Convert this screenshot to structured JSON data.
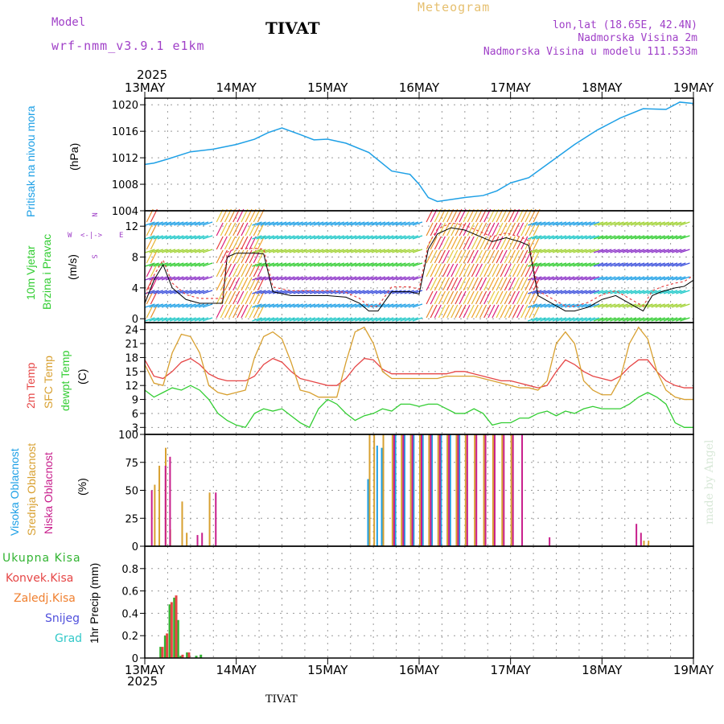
{
  "header": {
    "model_label": "Model",
    "model_name": "wrf-nmm_v3.9.1 e1km",
    "title": "TIVAT",
    "meteogram": "Meteogram",
    "lonlat": "lon,lat (18.65E, 42.4N)",
    "elevation": "Nadmorska Visina 2m",
    "model_elevation": "Nadmorska Visina u modelu 111.533m",
    "year_top": "2025",
    "year_bottom": "2025",
    "footer": "TIVAT",
    "credit": "made by Angel"
  },
  "colors": {
    "pressure": "#1ea0e6",
    "temp2m": "#e64646",
    "sfc_temp": "#d8a030",
    "dewpt": "#32cd32",
    "high_cloud": "#1ea0e6",
    "mid_cloud": "#d8a030",
    "low_cloud": "#c81e8c",
    "total_rain": "#32b432",
    "conv_rain": "#e64646",
    "frz_rain": "#f08030",
    "snow": "#5050dc",
    "hail": "#32c8c8"
  },
  "chart_data": [
    {
      "type": "line",
      "panel": "pressure",
      "ylabel_main": "Pritisak na nivou mora",
      "unit": "(hPa)",
      "x_ticks": [
        "13MAY",
        "14MAY",
        "15MAY",
        "16MAY",
        "17MAY",
        "18MAY",
        "19MAY"
      ],
      "ylim": [
        1004,
        1021
      ],
      "y_ticks": [
        1004,
        1008,
        1012,
        1016,
        1020
      ],
      "grid": true,
      "x_days": [
        0.0,
        0.1,
        0.25,
        0.5,
        0.75,
        1.0,
        1.2,
        1.35,
        1.5,
        1.7,
        1.85,
        2.0,
        2.2,
        2.45,
        2.7,
        2.9,
        3.0,
        3.1,
        3.2,
        3.35,
        3.5,
        3.7,
        3.85,
        4.0,
        4.2,
        4.45,
        4.7,
        4.95,
        5.2,
        5.45,
        5.7,
        5.85,
        6.0
      ],
      "series": [
        {
          "values": [
            1011.0,
            1011.2,
            1011.8,
            1012.9,
            1013.3,
            1014.0,
            1014.8,
            1015.8,
            1016.5,
            1015.5,
            1014.7,
            1014.8,
            1014.2,
            1012.8,
            1010.0,
            1009.5,
            1008.0,
            1006.0,
            1005.4,
            1005.7,
            1006.0,
            1006.3,
            1007.0,
            1008.2,
            1009.0,
            1011.5,
            1014.0,
            1016.2,
            1018.0,
            1019.4,
            1019.3,
            1020.4,
            1020.2
          ]
        }
      ]
    },
    {
      "type": "line",
      "panel": "wind",
      "ylabel_main": "10m Vjetar",
      "ylabel_sub": "Brzina i Pravac",
      "unit": "(m/s)",
      "compass": [
        "N",
        "E",
        "S",
        "W"
      ],
      "ylim": [
        -0.5,
        14
      ],
      "y_ticks": [
        0,
        4,
        8,
        12
      ],
      "grid": true,
      "x_days": [
        0.0,
        0.1,
        0.2,
        0.3,
        0.45,
        0.6,
        0.75,
        0.85,
        0.9,
        1.0,
        1.2,
        1.3,
        1.4,
        1.6,
        1.8,
        2.0,
        2.2,
        2.35,
        2.45,
        2.55,
        2.7,
        2.9,
        3.0,
        3.1,
        3.2,
        3.35,
        3.5,
        3.7,
        3.8,
        3.95,
        4.1,
        4.2,
        4.3,
        4.45,
        4.6,
        4.7,
        4.85,
        5.0,
        5.15,
        5.3,
        5.45,
        5.55,
        5.65,
        5.8,
        5.9,
        6.0
      ],
      "series": [
        {
          "name": "",
          "values": [
            2,
            5,
            7,
            4,
            2.5,
            2,
            2,
            2,
            8,
            8.5,
            8.5,
            8.4,
            3.5,
            3,
            3,
            3,
            2.8,
            2,
            1,
            1,
            3.5,
            3.5,
            3.2,
            9,
            11,
            11.8,
            11.5,
            10.5,
            10,
            10.5,
            10,
            9.5,
            3,
            2,
            1,
            1,
            1.5,
            2.5,
            3,
            2,
            1,
            3,
            3.5,
            4,
            4.2,
            5
          ]
        }
      ]
    },
    {
      "type": "line",
      "panel": "temperature",
      "ylabel_series": [
        "2m Temp",
        "SFC Temp",
        "dewpt Temp"
      ],
      "unit": "(C)",
      "ylim": [
        1.5,
        25.5
      ],
      "y_ticks": [
        3,
        6,
        9,
        12,
        15,
        18,
        21,
        24
      ],
      "grid": true,
      "x_days": [
        0.0,
        0.1,
        0.2,
        0.3,
        0.4,
        0.5,
        0.6,
        0.7,
        0.8,
        0.9,
        1.0,
        1.1,
        1.2,
        1.3,
        1.4,
        1.5,
        1.6,
        1.7,
        1.8,
        1.9,
        2.0,
        2.1,
        2.2,
        2.3,
        2.4,
        2.5,
        2.6,
        2.7,
        2.8,
        2.9,
        3.0,
        3.1,
        3.2,
        3.3,
        3.4,
        3.5,
        3.6,
        3.7,
        3.8,
        3.9,
        4.0,
        4.1,
        4.2,
        4.3,
        4.4,
        4.5,
        4.6,
        4.7,
        4.8,
        4.9,
        5.0,
        5.1,
        5.2,
        5.3,
        5.4,
        5.5,
        5.6,
        5.7,
        5.8,
        5.9,
        6.0
      ],
      "series": [
        {
          "name": "2m Temp",
          "values": [
            17.5,
            14,
            13.5,
            15,
            17,
            17.8,
            16.5,
            14.5,
            13.5,
            13,
            13,
            13,
            14,
            16.5,
            17.8,
            17,
            15,
            13.5,
            13,
            12.5,
            12,
            12,
            13.5,
            16,
            17.8,
            17.5,
            15.5,
            14.5,
            14.5,
            14.5,
            14.5,
            14.5,
            14.5,
            14.5,
            15,
            15,
            14.5,
            14,
            13.5,
            13,
            13,
            12.5,
            12,
            11.5,
            12,
            15,
            17.5,
            16.5,
            15,
            14,
            13.5,
            13,
            14,
            16,
            17.5,
            17.5,
            15,
            13,
            12,
            11.5,
            11.5
          ]
        },
        {
          "name": "SFC Temp",
          "values": [
            16.5,
            12.5,
            12,
            19,
            23,
            22.5,
            19,
            12,
            10.5,
            10,
            10.5,
            11,
            18,
            22.5,
            23.5,
            22,
            17,
            11,
            10.5,
            9.5,
            9.5,
            9.5,
            17,
            23.5,
            24.5,
            21,
            15,
            13.5,
            13.5,
            13.5,
            13.5,
            13.5,
            13.5,
            14,
            14,
            14,
            14,
            13.5,
            13,
            12.5,
            12,
            11.5,
            11.5,
            11,
            13,
            21,
            23.5,
            21,
            13,
            11,
            10,
            10,
            13.5,
            21,
            24.5,
            22,
            15,
            11,
            9.5,
            9,
            9
          ]
        },
        {
          "name": "dewpt Temp",
          "values": [
            11,
            9.5,
            10.5,
            11.5,
            11,
            12,
            11,
            9,
            6,
            4.5,
            3.5,
            3,
            6,
            7,
            6.5,
            7,
            5.5,
            4,
            3,
            7,
            9,
            8,
            6,
            4.5,
            5.5,
            6,
            7,
            6.5,
            8,
            8,
            7.5,
            8,
            8,
            7,
            6,
            6,
            7,
            6,
            3.5,
            4,
            4,
            5,
            5,
            6,
            6.5,
            5.5,
            6.5,
            6,
            7,
            7.5,
            7,
            7,
            7,
            8,
            9.5,
            10.5,
            9.5,
            8,
            4,
            3,
            3
          ]
        }
      ]
    },
    {
      "type": "bar",
      "panel": "cloud",
      "ylabel_series": [
        "Visoka Oblacnost",
        "Srednja Oblacnost",
        "Niska Oblacnost"
      ],
      "unit": "(%)",
      "ylim": [
        0,
        100
      ],
      "y_ticks": [
        0,
        25,
        50,
        75,
        100
      ],
      "grid": true,
      "series": [
        {
          "name": "Visoka Oblacnost",
          "x": [
            2.45,
            2.55,
            2.6,
            2.75,
            2.85,
            2.95,
            3.05,
            3.15,
            3.25,
            3.35,
            3.45
          ],
          "values": [
            60,
            90,
            88,
            100,
            100,
            100,
            100,
            100,
            100,
            100,
            100
          ]
        },
        {
          "name": "Srednja Oblacnost",
          "x": [
            0.1,
            0.15,
            0.22,
            0.27,
            0.4,
            0.45,
            0.7,
            2.45,
            2.5,
            2.6,
            2.7,
            2.8,
            2.9,
            3.0,
            3.1,
            3.2,
            3.3,
            3.4,
            3.5,
            3.6,
            3.7,
            3.8,
            3.9,
            4.0,
            5.45,
            5.5
          ],
          "values": [
            55,
            72,
            88,
            15,
            40,
            12,
            48,
            100,
            100,
            100,
            100,
            100,
            100,
            100,
            100,
            100,
            100,
            100,
            100,
            100,
            100,
            100,
            100,
            100,
            5,
            5
          ]
        },
        {
          "name": "Niska Oblacnost",
          "x": [
            0.05,
            0.2,
            0.25,
            0.55,
            0.6,
            0.75,
            2.7,
            2.8,
            2.9,
            3.0,
            3.1,
            3.2,
            3.3,
            3.4,
            3.5,
            3.6,
            3.7,
            3.8,
            3.9,
            4.0,
            4.1,
            4.4,
            5.35,
            5.4
          ],
          "values": [
            50,
            72,
            80,
            10,
            12,
            48,
            100,
            100,
            100,
            100,
            100,
            100,
            100,
            100,
            100,
            100,
            100,
            100,
            100,
            100,
            100,
            8,
            20,
            12
          ]
        }
      ]
    },
    {
      "type": "bar",
      "panel": "precip",
      "ylabel_series": [
        "Ukupna Kisa",
        "Konvek.Kisa",
        "Zaledj.Kisa",
        "Snijeg",
        "Grad"
      ],
      "unit": "1hr Precip (mm)",
      "ylim": [
        0,
        1.0
      ],
      "y_ticks": [
        0,
        0.2,
        0.4,
        0.6,
        0.8
      ],
      "grid": true,
      "x_ticks": [
        "13MAY",
        "14MAY",
        "15MAY",
        "16MAY",
        "17MAY",
        "18MAY",
        "19MAY"
      ],
      "series": [
        {
          "name": "Ukupna Kisa",
          "x": [
            0.16,
            0.21,
            0.26,
            0.31,
            0.35,
            0.38,
            0.45,
            0.55,
            0.6
          ],
          "values": [
            0.1,
            0.2,
            0.48,
            0.54,
            0.34,
            0.02,
            0.05,
            0.02,
            0.03
          ]
        },
        {
          "name": "Konvek.Kisa",
          "x": [
            0.18,
            0.23,
            0.28,
            0.33,
            0.4,
            0.47
          ],
          "values": [
            0.1,
            0.22,
            0.5,
            0.56,
            0.03,
            0.05
          ]
        }
      ]
    }
  ]
}
